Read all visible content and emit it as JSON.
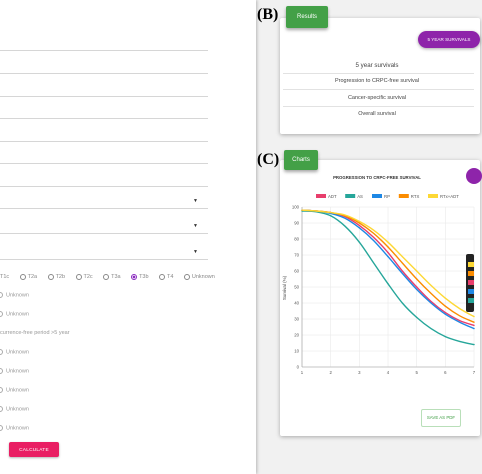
{
  "panel_letters": {
    "b": "(B)",
    "c": "(C)"
  },
  "form": {
    "stage_options": [
      "T1c",
      "T2a",
      "T2b",
      "T2c",
      "T3a",
      "T3b",
      "T4",
      "Unknown"
    ],
    "stage_selected": "T3b",
    "rows": [
      {
        "label": "Unknown"
      },
      {
        "label": "Unknown"
      },
      {
        "label": "currence-free period >5 year"
      },
      {
        "label": "Unknown"
      },
      {
        "label": "Unknown"
      },
      {
        "label": "Unknown"
      },
      {
        "label": "Unknown"
      },
      {
        "label": "Unknown"
      }
    ],
    "calculate_label": "CALCULATE",
    "accent_color": "#e91e63"
  },
  "results": {
    "tab_label": "Results",
    "pill_label": "5 YEAR SURVIVALS",
    "heading": "5 year survivals",
    "rows": [
      "Progression to CRPC-free survival",
      "Cancer-specific survival",
      "Overall survival"
    ],
    "tab_color": "#43a047",
    "pill_color": "#8e24aa"
  },
  "charts": {
    "tab_label": "Charts",
    "save_label": "SAVE AS PDF"
  },
  "chart_data": {
    "type": "line",
    "title": "PROGRESSION TO CRPC-FREE SURVIVAL",
    "xlabel": "",
    "ylabel": "Survival (%)",
    "xlim": [
      1,
      7
    ],
    "ylim": [
      0,
      100
    ],
    "x_ticks": [
      "1",
      "2",
      "3",
      "4",
      "5",
      "6",
      "7"
    ],
    "y_ticks": [
      "0",
      "10",
      "20",
      "30",
      "40",
      "50",
      "60",
      "70",
      "80",
      "90",
      "100"
    ],
    "x": [
      1,
      1.5,
      2,
      2.5,
      3,
      3.5,
      4,
      4.5,
      5,
      5.5,
      6,
      6.5,
      7
    ],
    "series": [
      {
        "name": "ADT",
        "color": "#e83e6c",
        "values": [
          98,
          97.5,
          96.5,
          94,
          88.5,
          81,
          71.5,
          60,
          50,
          41,
          34,
          29,
          26
        ]
      },
      {
        "name": "AS",
        "color": "#26a69a",
        "values": [
          97.5,
          97,
          94.5,
          88,
          78,
          65,
          52,
          40,
          31,
          24,
          19,
          16,
          14
        ]
      },
      {
        "name": "RP",
        "color": "#1e88e5",
        "values": [
          98,
          97.5,
          96,
          93,
          87,
          79,
          69,
          58.5,
          48.5,
          40,
          33,
          28,
          24
        ]
      },
      {
        "name": "RTX",
        "color": "#fb8c00",
        "values": [
          98,
          97.5,
          96.5,
          94.5,
          90,
          83.5,
          75,
          65,
          55,
          46,
          38,
          32,
          28
        ]
      },
      {
        "name": "RTx+ADT",
        "color": "#fdd835",
        "values": [
          98,
          97.5,
          96.5,
          95,
          91,
          85.5,
          78,
          69,
          60,
          51,
          43,
          36.5,
          31.5
        ]
      }
    ],
    "grid": true,
    "legend": "top"
  }
}
